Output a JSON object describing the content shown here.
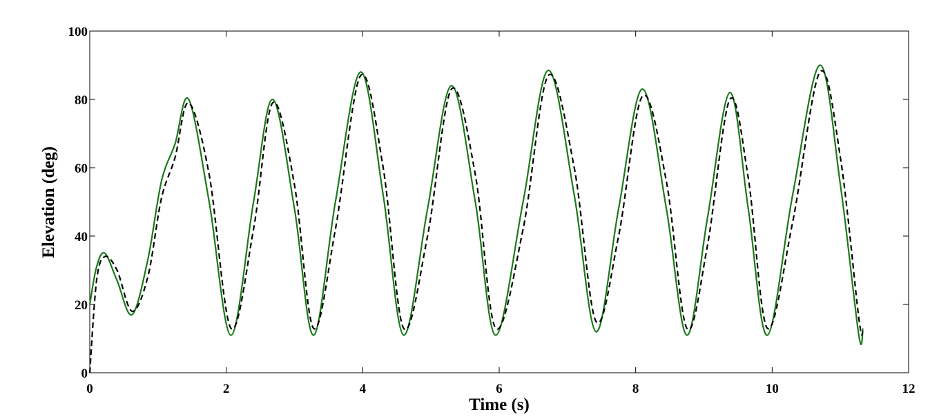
{
  "chart_data": {
    "type": "line",
    "xlabel": "Time (s)",
    "ylabel": "Elevation (deg)",
    "x": [
      0,
      0.1,
      0.22,
      0.4,
      0.62,
      0.85,
      1.05,
      1.25,
      1.45,
      1.75,
      2.07,
      2.4,
      2.68,
      3.0,
      3.28,
      3.6,
      3.97,
      4.3,
      4.6,
      4.95,
      5.3,
      5.65,
      5.95,
      6.35,
      6.72,
      7.1,
      7.42,
      7.75,
      8.1,
      8.45,
      8.75,
      9.05,
      9.38,
      9.65,
      9.93,
      10.3,
      10.7,
      11.0,
      11.27,
      11.33
    ],
    "series": [
      {
        "color": "#1a7a1a",
        "dash": "solid",
        "values": [
          20,
          31,
          35,
          27,
          17,
          33,
          56,
          67,
          80,
          50,
          11,
          50,
          80,
          48,
          11,
          50,
          88,
          52,
          11,
          48,
          84,
          50,
          11,
          50,
          88.5,
          52,
          12,
          48,
          83,
          48,
          11,
          45,
          82,
          48,
          11,
          52,
          90,
          55,
          11,
          13
        ]
      },
      {
        "color": "#000000",
        "dash": "dashed",
        "values": [
          0,
          27,
          34,
          30,
          18,
          28,
          51,
          63,
          79,
          58,
          13,
          42,
          79,
          55,
          13,
          42,
          87,
          60,
          13,
          40,
          83,
          58,
          13,
          42,
          87,
          60,
          15,
          40,
          81,
          56,
          13,
          37,
          80,
          57,
          13,
          44,
          88,
          63,
          16,
          12
        ]
      }
    ],
    "xlim": [
      0,
      12
    ],
    "xticks": [
      0,
      2,
      4,
      6,
      8,
      10,
      12
    ],
    "ylim": [
      0,
      100
    ],
    "yticks": [
      0,
      20,
      40,
      60,
      80,
      100
    ],
    "grid": false
  }
}
